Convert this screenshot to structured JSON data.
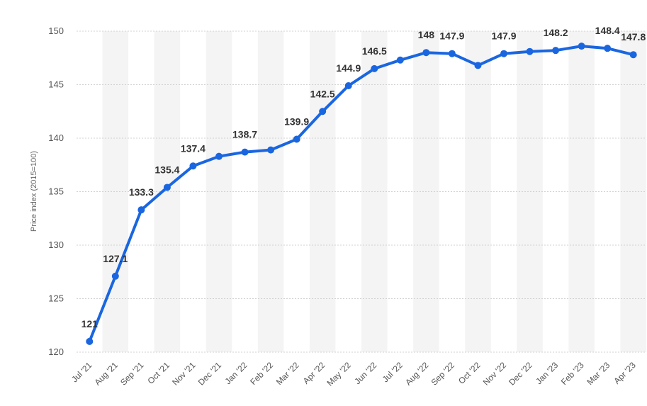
{
  "chart_data": {
    "type": "line",
    "ylabel": "Price index (2015=100)",
    "xlabel": "",
    "ylim": [
      120,
      150
    ],
    "yticks": [
      120,
      125,
      130,
      135,
      140,
      145,
      150
    ],
    "grid": true,
    "line_color": "#1a66e0",
    "band_color": "#f4f4f4",
    "grid_color": "#d0d0d0",
    "categories": [
      "Jul '21",
      "Aug '21",
      "Sep '21",
      "Oct '21",
      "Nov '21",
      "Dec '21",
      "Jan '22",
      "Feb '22",
      "Mar '22",
      "Apr '22",
      "May '22",
      "Jun '22",
      "Jul '22",
      "Aug '22",
      "Sep '22",
      "Oct '22",
      "Nov '22",
      "Dec '22",
      "Jan '23",
      "Feb '23",
      "Mar '23",
      "Apr '23"
    ],
    "values": [
      121,
      127.1,
      133.3,
      135.4,
      137.4,
      138.3,
      138.7,
      138.9,
      139.9,
      142.5,
      144.9,
      146.5,
      147.3,
      148,
      147.9,
      146.8,
      147.9,
      148.1,
      148.2,
      148.6,
      148.4,
      147.8
    ],
    "data_labels": [
      "121",
      "127.1",
      "133.3",
      "135.4",
      "137.4",
      "",
      "138.7",
      "",
      "139.9",
      "142.5",
      "144.9",
      "146.5",
      "",
      "148",
      "147.9",
      "",
      "147.9",
      "",
      "148.2",
      "",
      "148.4",
      "147.8"
    ]
  }
}
